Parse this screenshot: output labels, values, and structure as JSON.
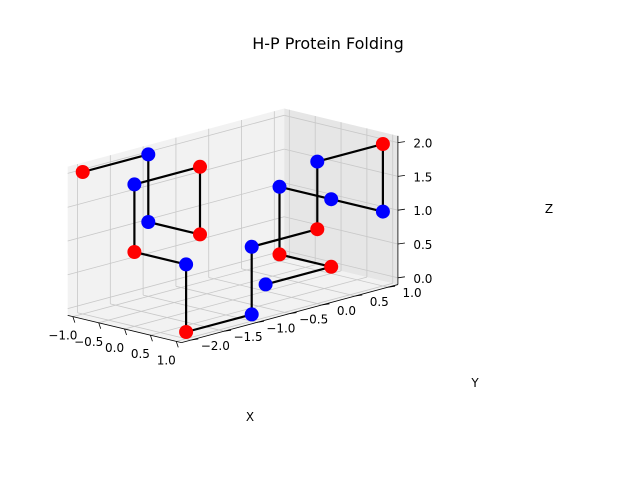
{
  "chart_data": {
    "type": "scatter3d",
    "title": "H-P Protein Folding",
    "xlabel": "X",
    "ylabel": "Y",
    "zlabel": "Z",
    "xlim": [
      -1,
      1
    ],
    "ylim": [
      -2,
      1
    ],
    "zlim": [
      0,
      2
    ],
    "x_ticks": [
      "−1.0",
      "−0.5",
      "0.0",
      "0.5",
      "1.0"
    ],
    "y_ticks": [
      "−2.0",
      "−1.5",
      "−1.0",
      "−0.5",
      "0.0",
      "0.5",
      "1.0"
    ],
    "z_ticks": [
      "0.0",
      "0.5",
      "1.0",
      "1.5",
      "2.0"
    ],
    "grid": true,
    "colors": {
      "H": "#ff0000",
      "P": "#0000ff",
      "backbone": "#000000"
    },
    "chain": [
      {
        "x": 0,
        "y": 0,
        "z": 0,
        "type": "P"
      },
      {
        "x": 0,
        "y": 1,
        "z": 0,
        "type": "H"
      },
      {
        "x": -1,
        "y": 1,
        "z": 0,
        "type": "H"
      },
      {
        "x": -1,
        "y": 1,
        "z": 1,
        "type": "P"
      },
      {
        "x": 0,
        "y": 1,
        "z": 1,
        "type": "P"
      },
      {
        "x": 1,
        "y": 1,
        "z": 1,
        "type": "P"
      },
      {
        "x": 1,
        "y": 1,
        "z": 2,
        "type": "H"
      },
      {
        "x": 1,
        "y": 0,
        "z": 2,
        "type": "P"
      },
      {
        "x": 1,
        "y": 0,
        "z": 1,
        "type": "H"
      },
      {
        "x": 1,
        "y": -1,
        "z": 1,
        "type": "P"
      },
      {
        "x": 1,
        "y": -1,
        "z": 0,
        "type": "P"
      },
      {
        "x": 1,
        "y": -2,
        "z": 0,
        "type": "H"
      },
      {
        "x": 1,
        "y": -2,
        "z": 1,
        "type": "P"
      },
      {
        "x": 0,
        "y": -2,
        "z": 1,
        "type": "H"
      },
      {
        "x": 0,
        "y": -2,
        "z": 2,
        "type": "P"
      },
      {
        "x": 0,
        "y": -1,
        "z": 2,
        "type": "H"
      },
      {
        "x": 0,
        "y": -1,
        "z": 1,
        "type": "H"
      },
      {
        "x": -1,
        "y": -1,
        "z": 1,
        "type": "P"
      },
      {
        "x": -1,
        "y": -1,
        "z": 2,
        "type": "P"
      },
      {
        "x": -1,
        "y": -2,
        "z": 2,
        "type": "H"
      }
    ]
  }
}
